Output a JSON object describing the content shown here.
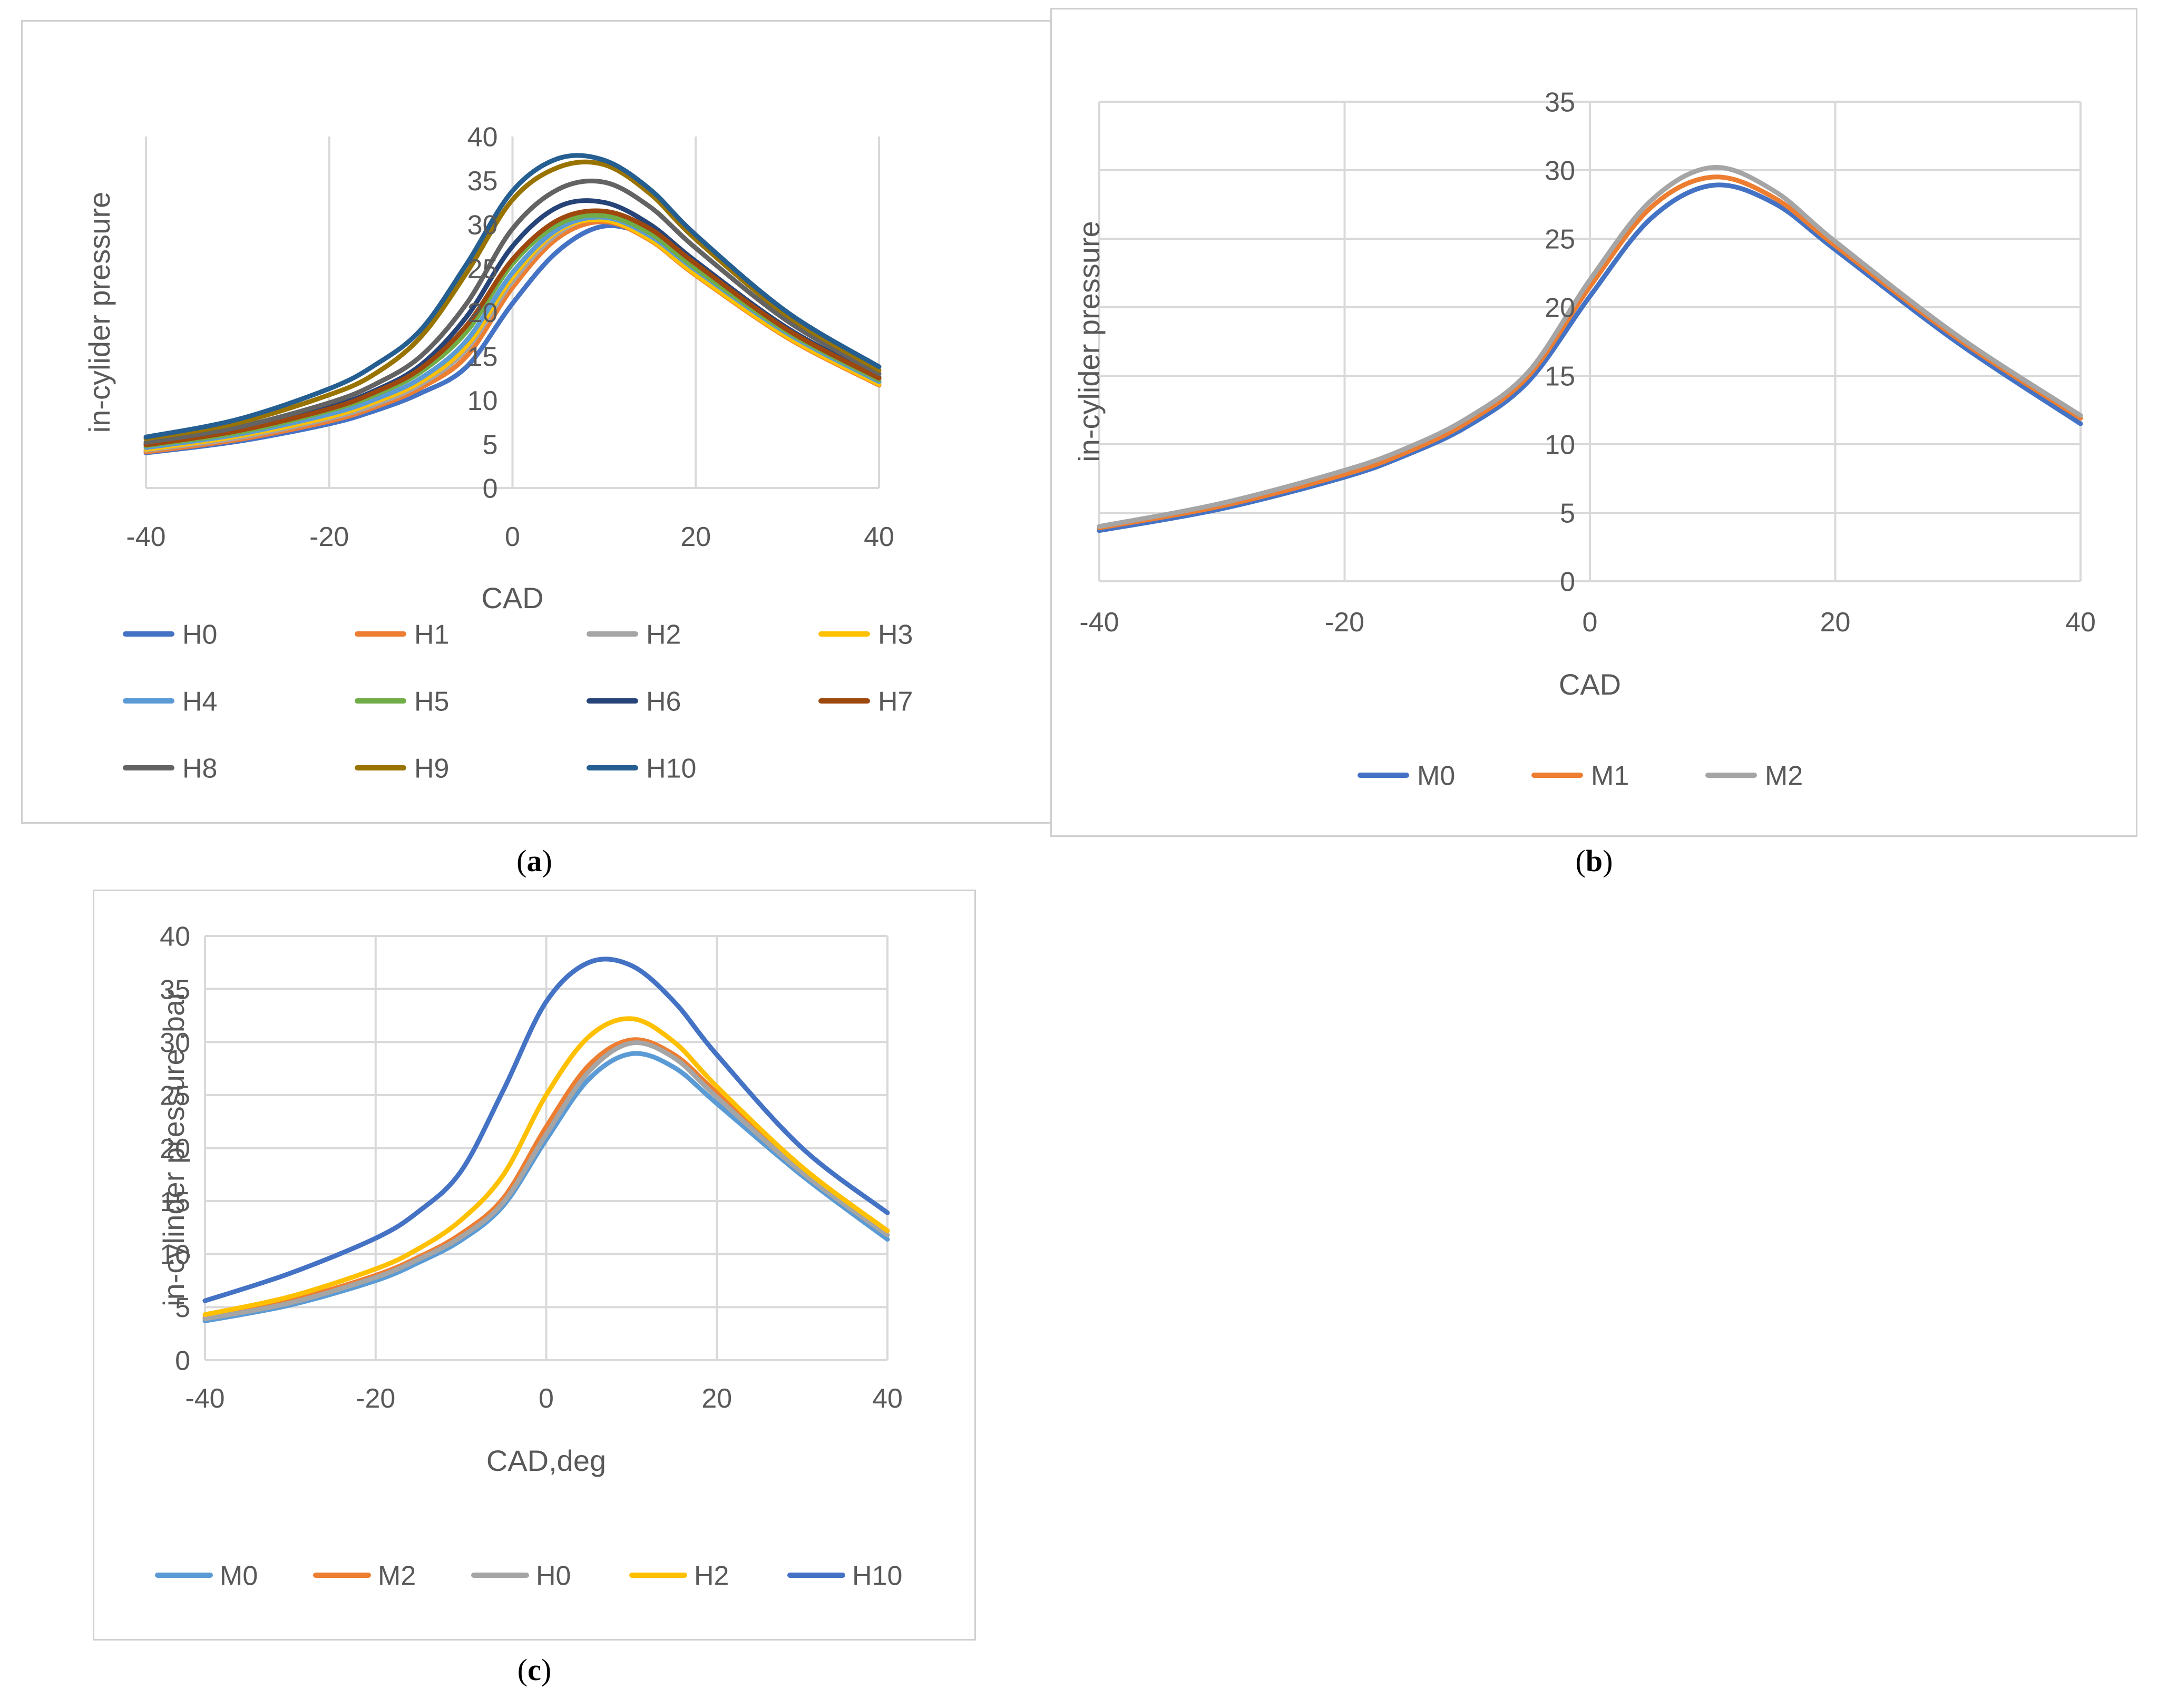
{
  "captions": {
    "a": {
      "open": "(",
      "letter": "a",
      "close": ")"
    },
    "b": {
      "open": "(",
      "letter": "b",
      "close": ")"
    },
    "c": {
      "open": "(",
      "letter": "c",
      "close": ")"
    }
  },
  "chart_data": [
    {
      "id": "a",
      "type": "line",
      "title": "",
      "xlabel": "CAD",
      "ylabel": "in-cylider pressure",
      "xlim": [
        -40,
        40
      ],
      "ylim": [
        0,
        40
      ],
      "x_ticks": [
        -40,
        -20,
        0,
        20,
        40
      ],
      "y_ticks": [
        0,
        5,
        10,
        15,
        20,
        25,
        30,
        35,
        40
      ],
      "grid": "vertical",
      "legend": "bottom",
      "x": [
        -40,
        -30,
        -20,
        -15,
        -10,
        -5,
        0,
        5,
        10,
        15,
        20,
        30,
        40
      ],
      "series": [
        {
          "name": "H0",
          "color": "#4472C4",
          "values": [
            4.0,
            5.3,
            7.3,
            8.8,
            10.8,
            13.8,
            21.0,
            27.0,
            29.8,
            28.5,
            24.5,
            17.5,
            12.0
          ]
        },
        {
          "name": "H1",
          "color": "#ED7D31",
          "values": [
            4.1,
            5.5,
            7.6,
            9.2,
            11.4,
            15.0,
            22.8,
            28.5,
            30.3,
            28.2,
            24.2,
            17.1,
            11.7
          ]
        },
        {
          "name": "H2",
          "color": "#A5A5A5",
          "values": [
            4.3,
            5.7,
            7.9,
            9.5,
            11.8,
            15.8,
            23.5,
            29.0,
            30.8,
            28.5,
            24.5,
            17.3,
            11.8
          ]
        },
        {
          "name": "H3",
          "color": "#FFC000",
          "values": [
            4.4,
            5.9,
            8.1,
            9.8,
            12.1,
            16.2,
            24.0,
            29.3,
            30.5,
            28.3,
            24.3,
            17.2,
            11.8
          ]
        },
        {
          "name": "H4",
          "color": "#5B9BD5",
          "values": [
            4.6,
            6.1,
            8.4,
            10.1,
            12.5,
            16.8,
            24.5,
            29.5,
            30.8,
            28.7,
            24.8,
            17.6,
            12.1
          ]
        },
        {
          "name": "H5",
          "color": "#70AD47",
          "values": [
            4.8,
            6.3,
            8.8,
            10.6,
            13.2,
            17.8,
            25.5,
            30.0,
            31.0,
            29.0,
            25.0,
            17.8,
            12.3
          ]
        },
        {
          "name": "H6",
          "color": "#264478",
          "values": [
            5.0,
            6.6,
            9.2,
            11.1,
            14.0,
            19.5,
            27.5,
            32.0,
            32.5,
            30.0,
            25.8,
            18.2,
            12.6
          ]
        },
        {
          "name": "H7",
          "color": "#9E480E",
          "values": [
            4.9,
            6.5,
            9.0,
            10.9,
            13.6,
            18.5,
            26.0,
            30.5,
            31.5,
            29.5,
            25.5,
            18.0,
            12.5
          ]
        },
        {
          "name": "H8",
          "color": "#636363",
          "values": [
            5.2,
            6.9,
            9.7,
            11.8,
            15.0,
            21.0,
            29.5,
            34.0,
            34.8,
            32.0,
            27.3,
            19.0,
            13.0
          ]
        },
        {
          "name": "H9",
          "color": "#997300",
          "values": [
            5.6,
            7.4,
            10.6,
            13.0,
            17.2,
            24.5,
            32.8,
            36.5,
            36.8,
            33.5,
            28.3,
            19.6,
            13.4
          ]
        },
        {
          "name": "H10",
          "color": "#255E91",
          "values": [
            5.8,
            7.8,
            11.3,
            14.0,
            18.0,
            25.5,
            33.8,
            37.5,
            37.3,
            34.0,
            28.8,
            20.0,
            13.8
          ]
        }
      ]
    },
    {
      "id": "b",
      "type": "line",
      "title": "",
      "xlabel": "CAD",
      "ylabel": "in-cylider pressure",
      "xlim": [
        -40,
        40
      ],
      "ylim": [
        0,
        35
      ],
      "x_ticks": [
        -40,
        -20,
        0,
        20,
        40
      ],
      "y_ticks": [
        0,
        5,
        10,
        15,
        20,
        25,
        30,
        35
      ],
      "grid": "both",
      "legend": "bottom",
      "x": [
        -40,
        -30,
        -20,
        -15,
        -10,
        -5,
        0,
        5,
        10,
        15,
        20,
        30,
        40
      ],
      "series": [
        {
          "name": "M0",
          "color": "#4472C4",
          "values": [
            3.7,
            5.3,
            7.6,
            9.2,
            11.3,
            14.6,
            20.8,
            26.5,
            28.9,
            27.6,
            24.2,
            17.4,
            11.5
          ]
        },
        {
          "name": "M1",
          "color": "#ED7D31",
          "values": [
            3.9,
            5.5,
            7.8,
            9.4,
            11.6,
            15.0,
            21.5,
            27.3,
            29.5,
            28.0,
            24.5,
            17.7,
            11.9
          ]
        },
        {
          "name": "M2",
          "color": "#A5A5A5",
          "values": [
            4.0,
            5.7,
            8.1,
            9.7,
            11.9,
            15.3,
            22.0,
            27.8,
            30.2,
            28.5,
            24.8,
            17.9,
            12.1
          ]
        }
      ]
    },
    {
      "id": "c",
      "type": "line",
      "title": "",
      "xlabel": "CAD,deg",
      "ylabel": "in-cylinder pressure ,bar",
      "xlim": [
        -40,
        40
      ],
      "ylim": [
        0,
        40
      ],
      "x_ticks": [
        -40,
        -20,
        0,
        20,
        40
      ],
      "y_ticks": [
        0,
        5,
        10,
        15,
        20,
        25,
        30,
        35,
        40
      ],
      "grid": "both",
      "legend": "bottom",
      "x": [
        -40,
        -30,
        -20,
        -15,
        -10,
        -5,
        0,
        5,
        10,
        15,
        20,
        30,
        40
      ],
      "series": [
        {
          "name": "M0",
          "color": "#5B9BD5",
          "values": [
            3.7,
            5.2,
            7.5,
            9.2,
            11.3,
            14.6,
            20.8,
            26.5,
            28.9,
            27.6,
            24.2,
            17.4,
            11.4
          ]
        },
        {
          "name": "M2",
          "color": "#ED7D31",
          "values": [
            4.0,
            5.6,
            8.0,
            9.7,
            11.9,
            15.3,
            22.0,
            27.8,
            30.2,
            28.8,
            25.2,
            18.0,
            12.2
          ]
        },
        {
          "name": "H0",
          "color": "#A5A5A5",
          "values": [
            3.9,
            5.4,
            7.8,
            9.5,
            11.6,
            14.9,
            21.3,
            27.2,
            29.9,
            28.5,
            24.8,
            17.7,
            11.8
          ]
        },
        {
          "name": "H2",
          "color": "#FFC000",
          "values": [
            4.3,
            6.0,
            8.6,
            10.5,
            13.2,
            17.5,
            25.0,
            30.5,
            32.2,
            30.0,
            25.8,
            18.2,
            12.2
          ]
        },
        {
          "name": "H10",
          "color": "#4472C4",
          "values": [
            5.6,
            8.2,
            11.5,
            14.0,
            17.8,
            25.5,
            33.8,
            37.5,
            37.2,
            33.8,
            28.8,
            20.0,
            13.9
          ]
        }
      ]
    }
  ]
}
